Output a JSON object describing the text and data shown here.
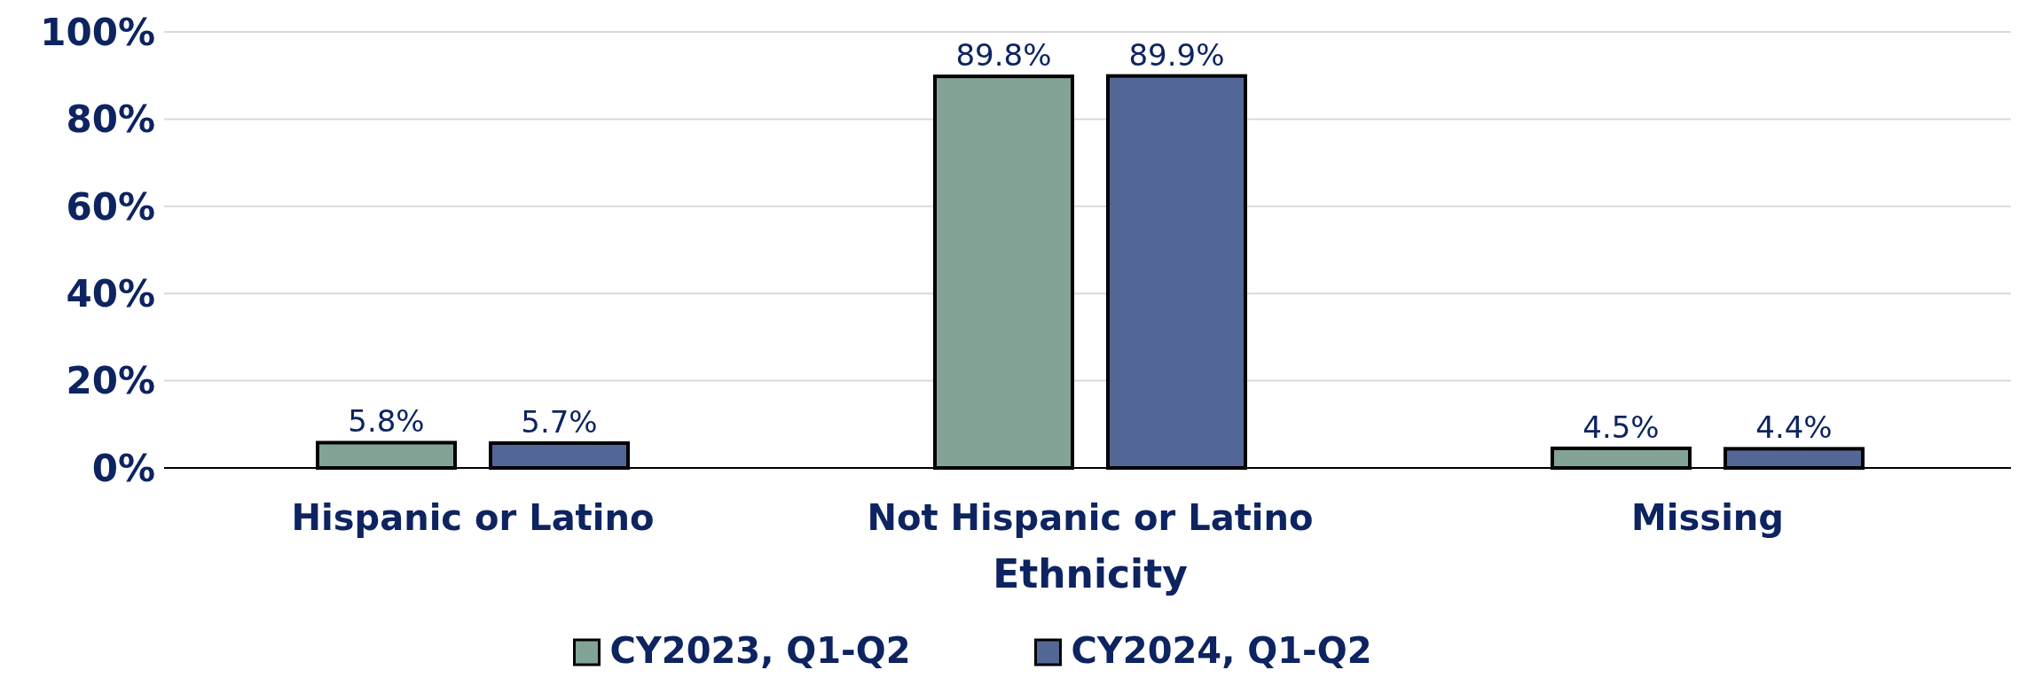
{
  "chart_data": {
    "type": "bar",
    "xlabel": "Ethnicity",
    "categories": [
      "Hispanic or Latino",
      "Not Hispanic or Latino",
      "Missing"
    ],
    "series": [
      {
        "name": "CY2023, Q1-Q2",
        "color": "#82a395",
        "values": [
          5.8,
          89.8,
          4.5
        ]
      },
      {
        "name": "CY2024, Q1-Q2",
        "color": "#536797",
        "values": [
          5.7,
          89.9,
          4.4
        ]
      }
    ],
    "value_labels": [
      [
        "5.8%",
        "89.8%",
        "4.5%"
      ],
      [
        "5.7%",
        "89.9%",
        "4.4%"
      ]
    ],
    "ylim": [
      0,
      100
    ],
    "yticks": [
      {
        "value": 0,
        "label": "0%"
      },
      {
        "value": 20,
        "label": "20%"
      },
      {
        "value": 40,
        "label": "40%"
      },
      {
        "value": 60,
        "label": "60%"
      },
      {
        "value": 80,
        "label": "80%"
      },
      {
        "value": 100,
        "label": "100%"
      }
    ],
    "grid": "y",
    "legend": "bottom"
  }
}
